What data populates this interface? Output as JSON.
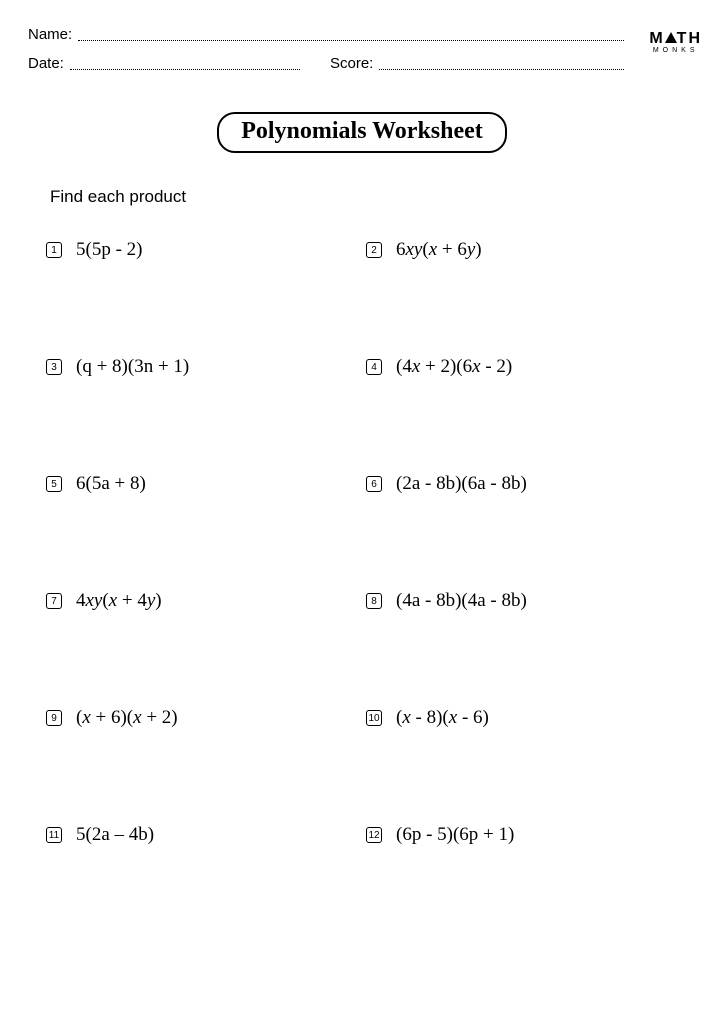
{
  "header": {
    "name_label": "Name:",
    "date_label": "Date:",
    "score_label": "Score:"
  },
  "logo": {
    "line1_pre": "M",
    "line1_post": "TH",
    "line2": "MONKS"
  },
  "title": "Polynomials Worksheet",
  "instruction": "Find each product",
  "problems": [
    {
      "n": "1",
      "html": "5(5p - 2)"
    },
    {
      "n": "2",
      "html": "6<span class='it'>xy</span>(<span class='it'>x</span> + 6<span class='it'>y</span>)"
    },
    {
      "n": "3",
      "html": "(q + 8)(3n + 1)"
    },
    {
      "n": "4",
      "html": "(4<span class='it'>x</span> + 2)(6<span class='it'>x</span> - 2)"
    },
    {
      "n": "5",
      "html": "6(5a + 8)"
    },
    {
      "n": "6",
      "html": "(2a - 8b)(6a - 8b)"
    },
    {
      "n": "7",
      "html": "4<span class='it'>xy</span>(<span class='it'>x</span> + 4<span class='it'>y</span>)"
    },
    {
      "n": "8",
      "html": "(4a - 8b)(4a - 8b)"
    },
    {
      "n": "9",
      "html": "(<span class='it'>x</span> + 6)(<span class='it'>x</span> + 2)"
    },
    {
      "n": "10",
      "html": "(<span class='it'>x</span> - 8)(<span class='it'>x</span> - 6)"
    },
    {
      "n": "11",
      "html": "5(2a – 4b)"
    },
    {
      "n": "12",
      "html": "(6p - 5)(6p + 1)"
    }
  ],
  "style": {
    "page_bg": "#ffffff",
    "text_color": "#000000",
    "title_fontsize": 24,
    "expr_fontsize": 19,
    "label_fontsize": 15
  }
}
